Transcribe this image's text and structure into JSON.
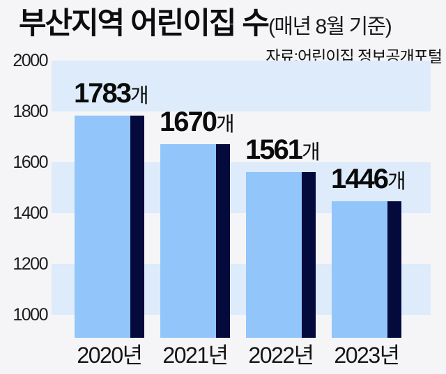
{
  "header": {
    "title": "부산지역 어린이집 수",
    "title_note": "(매년 8월 기준)",
    "source": "자료:어린이집 정보공개포털"
  },
  "chart_data": {
    "type": "bar",
    "title": "부산지역 어린이집 수(매년 8월 기준)",
    "source": "자료:어린이집 정보공개포털",
    "categories": [
      "2020년",
      "2021년",
      "2022년",
      "2023년"
    ],
    "values": [
      1783,
      1670,
      1561,
      1446
    ],
    "value_unit": "개",
    "value_labels": [
      "1783개",
      "1670개",
      "1561개",
      "1446개"
    ],
    "y_ticks": [
      2000,
      1800,
      1600,
      1400,
      1200,
      1000
    ],
    "ylim": [
      1000,
      2000
    ],
    "banded_rows": [
      [
        2000,
        1800
      ],
      [
        1600,
        1400
      ],
      [
        1200,
        1000
      ]
    ],
    "grid": "horizontal-bands",
    "legend": "none",
    "colors": {
      "background": "#f5f5f7",
      "band": "#ddebfb",
      "bar": "#92c5f9",
      "bar_stripe": "#040a3c",
      "text": "#121212"
    }
  }
}
